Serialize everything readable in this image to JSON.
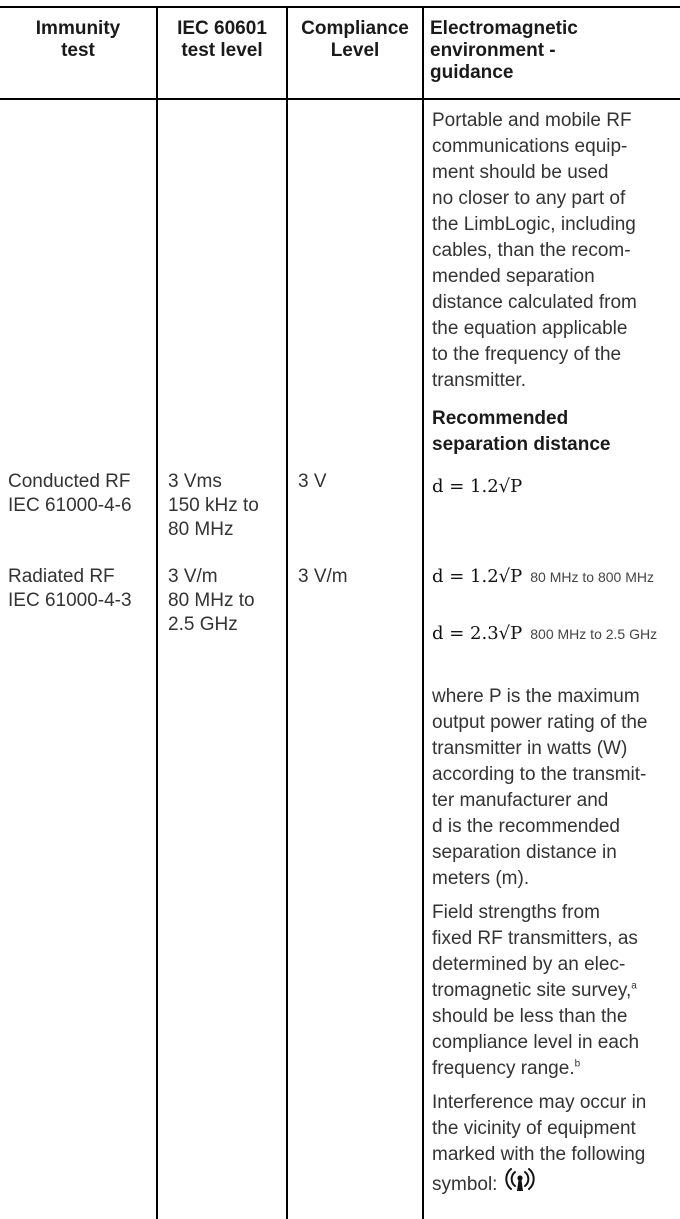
{
  "header": {
    "col1": [
      "Immunity",
      "test"
    ],
    "col2": [
      "IEC 60601",
      "test level"
    ],
    "col3": [
      "Compliance",
      "Level"
    ],
    "col4": [
      "Electromagnetic",
      "environment -",
      "guidance"
    ]
  },
  "guidance": {
    "intro_lines": [
      "Portable and mobile RF",
      "communications equip-",
      "ment should be used",
      "no closer to any part of",
      "the LimbLogic, including",
      "cables, than the recom-",
      "mended separation",
      "distance calculated from",
      "the equation applicable",
      "to the frequency of the",
      "transmitter."
    ],
    "recommended_heading": [
      "Recommended",
      "separation distance"
    ],
    "eq_conducted": "d = 1.2√P",
    "eq_radiated_1": "d = 1.2√P",
    "range_1": "80 MHz to 800 MHz",
    "eq_radiated_2": "d = 2.3√P",
    "range_2": "800 MHz to 2.5 GHz",
    "where_lines": [
      "where P is the maximum",
      "output power rating of the",
      "transmitter in watts (W)",
      "according to the transmit-",
      "ter manufacturer and",
      "d is the recommended",
      "separation distance in",
      "meters (m)."
    ],
    "field_lines": [
      "Field strengths from",
      "fixed RF transmitters, as",
      "determined by an elec-",
      "tromagnetic site survey,",
      "should be less than the",
      "compliance level in each",
      "frequency range."
    ],
    "footnote_a": "a",
    "footnote_b": "b",
    "interference_lines": [
      "Interference may occur in",
      "the vicinity of equipment",
      "marked with the following",
      "symbol:"
    ],
    "symbol_icon": "non-ionizing-radiation-icon"
  },
  "rows": [
    {
      "test": [
        "Conducted RF",
        "IEC 61000-4-6"
      ],
      "level": [
        "3 Vms",
        "150 kHz to",
        "80 MHz"
      ],
      "compliance": "3 V"
    },
    {
      "test": [
        "Radiated RF",
        "IEC 61000-4-3"
      ],
      "level": [
        "3 V/m",
        "80 MHz to",
        "2.5 GHz"
      ],
      "compliance": "3 V/m"
    }
  ]
}
